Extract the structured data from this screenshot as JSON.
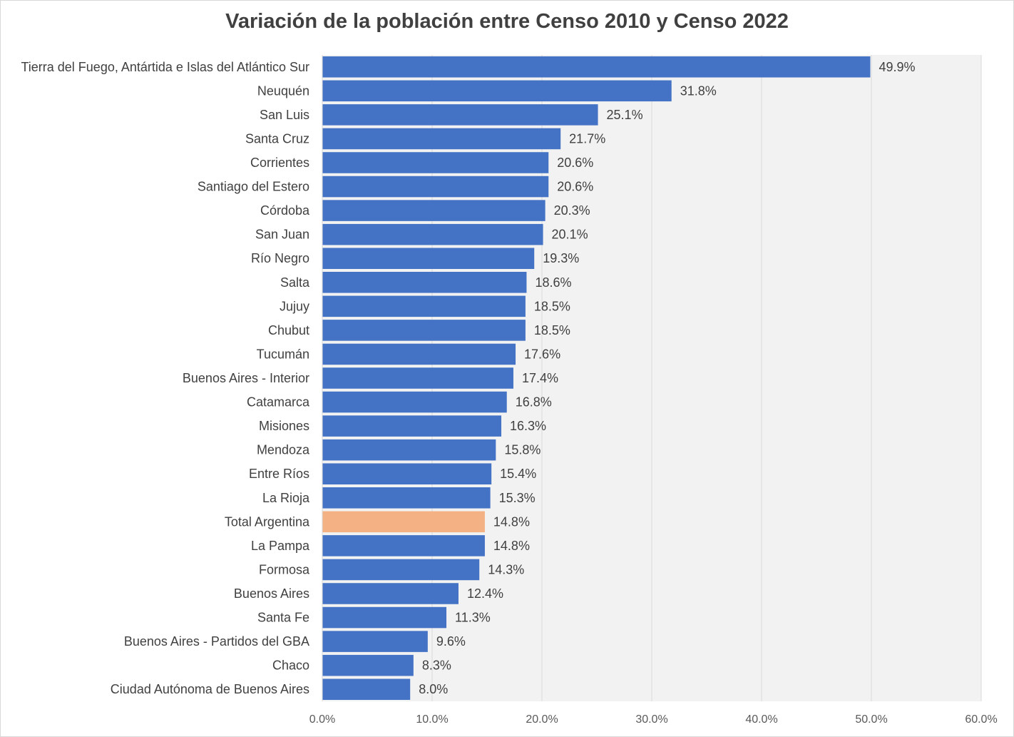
{
  "chart_data": {
    "type": "bar",
    "orientation": "horizontal",
    "title": "Variación de la población entre Censo 2010 y Censo 2022",
    "xlabel": "",
    "ylabel": "",
    "xlim": [
      0,
      60
    ],
    "xticks": [
      "0.0%",
      "10.0%",
      "20.0%",
      "30.0%",
      "40.0%",
      "50.0%",
      "60.0%"
    ],
    "grid": true,
    "legend": "none",
    "colors": {
      "default": "#4472C4",
      "highlight": "#F4B183",
      "plot_background": "#F2F2F2",
      "gridline": "#D9D9D9"
    },
    "categories": [
      "Tierra del Fuego, Antártida e Islas del Atlántico Sur",
      "Neuquén",
      "San Luis",
      "Santa Cruz",
      "Corrientes",
      "Santiago del Estero",
      "Córdoba",
      "San Juan",
      "Río Negro",
      "Salta",
      "Jujuy",
      "Chubut",
      "Tucumán",
      "Buenos Aires - Interior",
      "Catamarca",
      "Misiones",
      "Mendoza",
      "Entre Ríos",
      "La Rioja",
      "Total Argentina",
      "La Pampa",
      "Formosa",
      "Buenos Aires",
      "Santa Fe",
      "Buenos Aires - Partidos del GBA",
      "Chaco",
      "Ciudad Autónoma de Buenos Aires"
    ],
    "values": [
      49.9,
      31.8,
      25.1,
      21.7,
      20.6,
      20.6,
      20.3,
      20.1,
      19.3,
      18.6,
      18.5,
      18.5,
      17.6,
      17.4,
      16.8,
      16.3,
      15.8,
      15.4,
      15.3,
      14.8,
      14.8,
      14.3,
      12.4,
      11.3,
      9.6,
      8.3,
      8.0
    ],
    "value_labels": [
      "49.9%",
      "31.8%",
      "25.1%",
      "21.7%",
      "20.6%",
      "20.6%",
      "20.3%",
      "20.1%",
      "19.3%",
      "18.6%",
      "18.5%",
      "18.5%",
      "17.6%",
      "17.4%",
      "16.8%",
      "16.3%",
      "15.8%",
      "15.4%",
      "15.3%",
      "14.8%",
      "14.8%",
      "14.3%",
      "12.4%",
      "11.3%",
      "9.6%",
      "8.3%",
      "8.0%"
    ],
    "highlight_category": "Total Argentina"
  }
}
